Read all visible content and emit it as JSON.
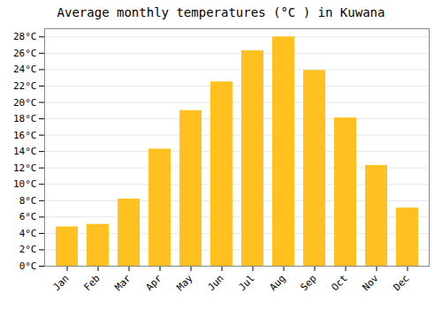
{
  "chart_data": {
    "type": "bar",
    "title": "Average monthly temperatures (°C ) in Kuwana",
    "categories": [
      "Jan",
      "Feb",
      "Mar",
      "Apr",
      "May",
      "Jun",
      "Jul",
      "Aug",
      "Sep",
      "Oct",
      "Nov",
      "Dec"
    ],
    "values": [
      4.8,
      5.1,
      8.2,
      14.3,
      19.0,
      22.5,
      26.3,
      28.0,
      23.9,
      18.1,
      12.3,
      7.1
    ],
    "color": "#FFC020",
    "ylim": [
      0,
      29
    ],
    "yticks": [
      {
        "value": 0,
        "label": "0°C"
      },
      {
        "value": 2,
        "label": "2°C"
      },
      {
        "value": 4,
        "label": "4°C"
      },
      {
        "value": 6,
        "label": "6°C"
      },
      {
        "value": 8,
        "label": "8°C"
      },
      {
        "value": 10,
        "label": "10°C"
      },
      {
        "value": 12,
        "label": "12°C"
      },
      {
        "value": 14,
        "label": "14°C"
      },
      {
        "value": 16,
        "label": "16°C"
      },
      {
        "value": 18,
        "label": "18°C"
      },
      {
        "value": 20,
        "label": "20°C"
      },
      {
        "value": 22,
        "label": "22°C"
      },
      {
        "value": 24,
        "label": "24°C"
      },
      {
        "value": 26,
        "label": "26°C"
      },
      {
        "value": 28,
        "label": "28°C"
      }
    ],
    "grid": true
  }
}
